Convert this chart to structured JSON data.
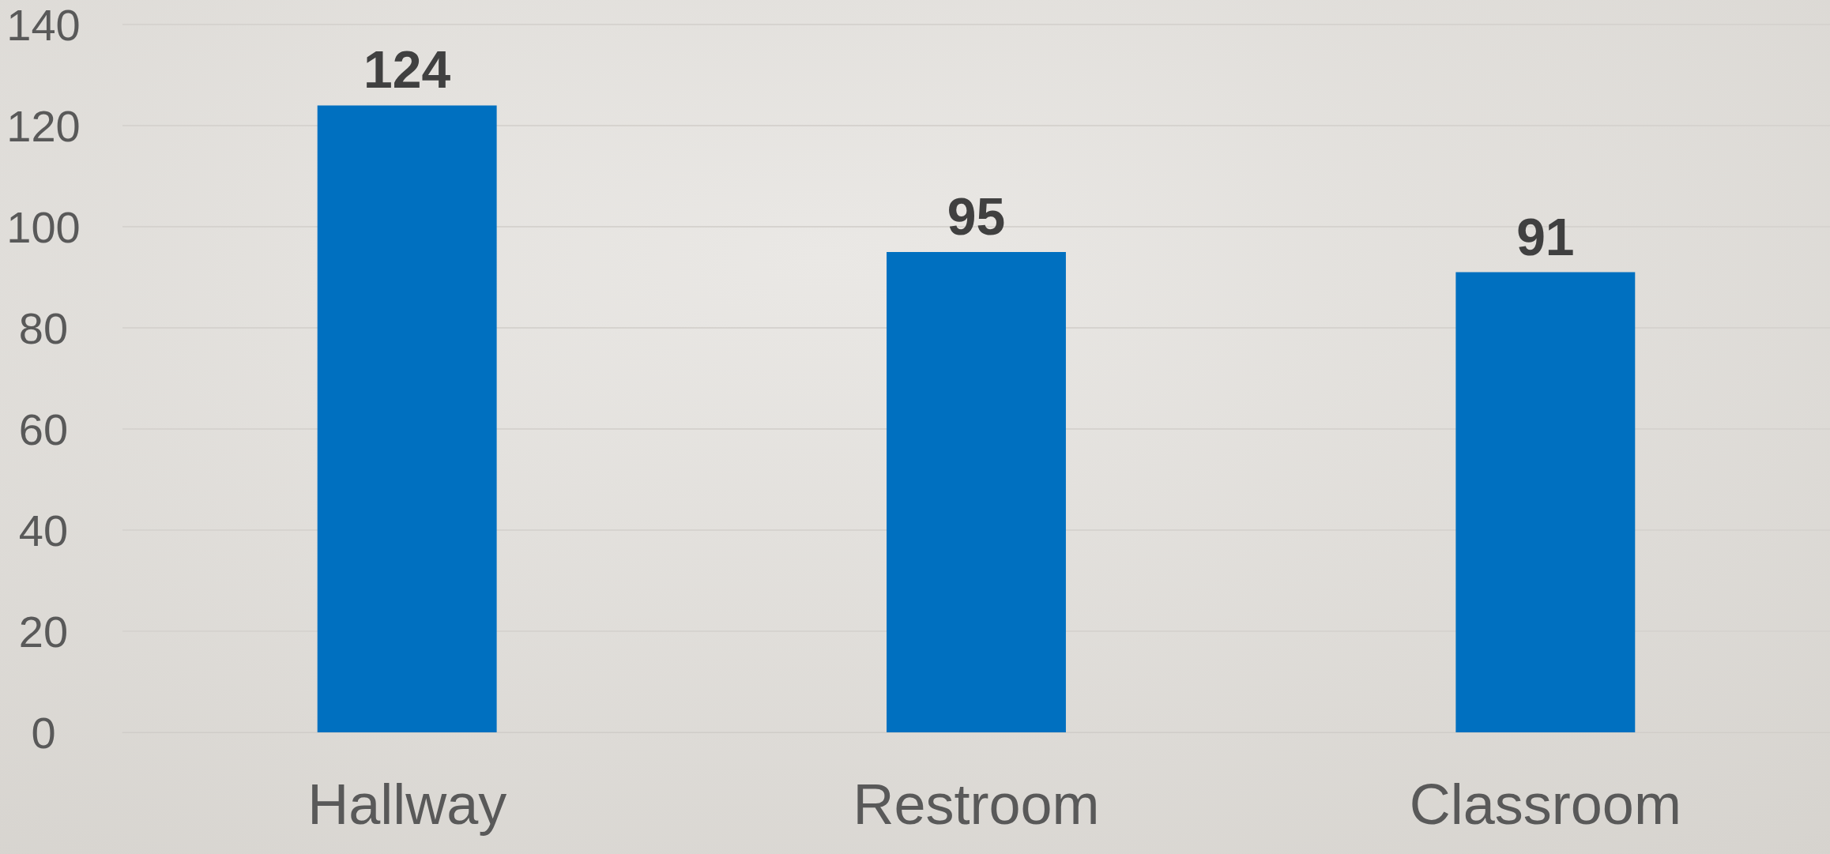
{
  "chart_data": {
    "type": "bar",
    "categories": [
      "Hallway",
      "Restroom",
      "Classroom"
    ],
    "values": [
      124,
      95,
      91
    ],
    "color": "#0070c0",
    "ylim": [
      0,
      140
    ],
    "yticks": [
      0,
      20,
      40,
      60,
      80,
      100,
      120,
      140
    ],
    "grid": "y",
    "data_labels": true
  }
}
